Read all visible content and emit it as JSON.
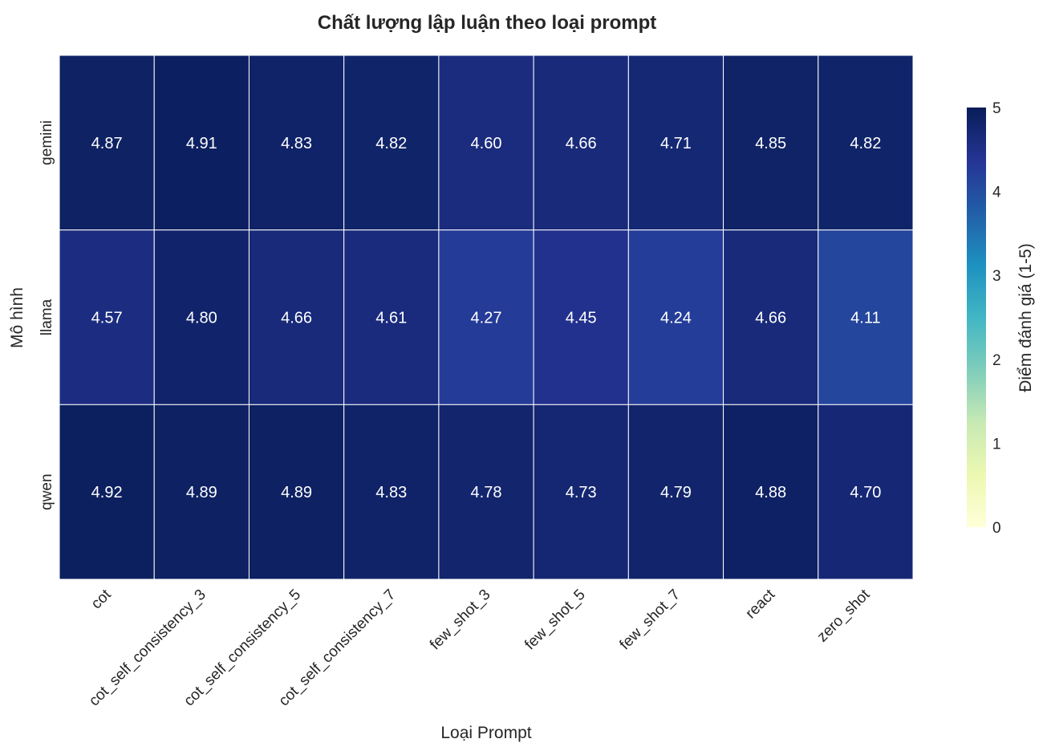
{
  "chart_data": {
    "type": "heatmap",
    "title": "Chất lượng lập luận theo loại prompt",
    "xlabel": "Loại Prompt",
    "ylabel": "Mô hình",
    "x_categories": [
      "cot",
      "cot_self_consistency_3",
      "cot_self_consistency_5",
      "cot_self_consistency_7",
      "few_shot_3",
      "few_shot_5",
      "few_shot_7",
      "react",
      "zero_shot"
    ],
    "y_categories": [
      "gemini",
      "llama",
      "qwen"
    ],
    "values": [
      [
        4.87,
        4.91,
        4.83,
        4.82,
        4.6,
        4.66,
        4.71,
        4.85,
        4.82
      ],
      [
        4.57,
        4.8,
        4.66,
        4.61,
        4.27,
        4.45,
        4.24,
        4.66,
        4.11
      ],
      [
        4.92,
        4.89,
        4.89,
        4.83,
        4.78,
        4.73,
        4.79,
        4.88,
        4.7
      ]
    ],
    "value_format": "0.00",
    "colorbar": {
      "label": "Điểm đánh giá (1-5)",
      "range": [
        0,
        5
      ],
      "ticks": [
        0,
        1,
        2,
        3,
        4,
        5
      ],
      "colormap": "YlGnBu"
    }
  }
}
